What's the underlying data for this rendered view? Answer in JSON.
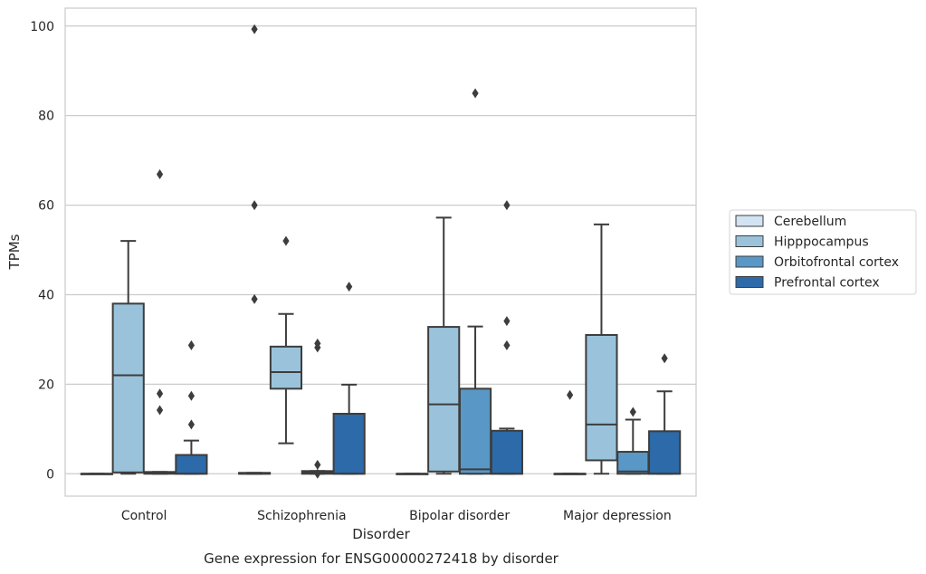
{
  "chart_data": {
    "type": "boxplot",
    "title": "Gene expression for ENSG00000272418 by disorder",
    "xlabel": "Disorder",
    "ylabel": "TPMs",
    "ylim": [
      -5,
      104
    ],
    "yticks": [
      0,
      20,
      40,
      60,
      80,
      100
    ],
    "grid": "horizontal",
    "legend_position": "right",
    "categories": [
      "Control",
      "Schizophrenia",
      "Bipolar disorder",
      "Major depression"
    ],
    "series": [
      {
        "name": "Cerebellum",
        "color": "#d2e3f3",
        "boxes": [
          {
            "q1": 0,
            "median": 0,
            "q3": 0,
            "whislo": 0,
            "whishi": 0,
            "fliers": []
          },
          {
            "q1": 0,
            "median": 0,
            "q3": 0.2,
            "whislo": 0,
            "whishi": 0.2,
            "fliers": [
              39,
              60,
              99.3
            ]
          },
          {
            "q1": 0,
            "median": 0,
            "q3": 0,
            "whislo": 0,
            "whishi": 0,
            "fliers": []
          },
          {
            "q1": 0,
            "median": 0,
            "q3": 0,
            "whislo": 0,
            "whishi": 0,
            "fliers": [
              17.6
            ]
          }
        ]
      },
      {
        "name": "Hipppocampus",
        "color": "#9ac3db",
        "boxes": [
          {
            "q1": 0.3,
            "median": 22,
            "q3": 38,
            "whislo": 0,
            "whishi": 52,
            "fliers": []
          },
          {
            "q1": 19,
            "median": 22.7,
            "q3": 28.4,
            "whislo": 6.8,
            "whishi": 35.7,
            "fliers": [
              52
            ]
          },
          {
            "q1": 0.5,
            "median": 15.5,
            "q3": 32.8,
            "whislo": 0,
            "whishi": 57.2,
            "fliers": []
          },
          {
            "q1": 3,
            "median": 11,
            "q3": 31,
            "whislo": 0,
            "whishi": 55.7,
            "fliers": []
          }
        ]
      },
      {
        "name": "Orbitofrontal cortex",
        "color": "#5998c6",
        "boxes": [
          {
            "q1": 0,
            "median": 0.2,
            "q3": 0.4,
            "whislo": 0,
            "whishi": 0.4,
            "fliers": [
              14.2,
              17.9,
              66.9
            ]
          },
          {
            "q1": 0,
            "median": 0.3,
            "q3": 0.6,
            "whislo": 0,
            "whishi": 0.6,
            "fliers": [
              0,
              2,
              28.2,
              29.1
            ]
          },
          {
            "q1": 0,
            "median": 1,
            "q3": 19,
            "whislo": 0,
            "whishi": 32.9,
            "fliers": [
              85
            ]
          },
          {
            "q1": 0,
            "median": 0.5,
            "q3": 4.9,
            "whislo": 0,
            "whishi": 12.1,
            "fliers": [
              13.8
            ]
          }
        ]
      },
      {
        "name": "Prefrontal cortex",
        "color": "#2c6aa9",
        "boxes": [
          {
            "q1": 0,
            "median": 0,
            "q3": 4.2,
            "whislo": 0,
            "whishi": 7.4,
            "fliers": [
              11,
              17.4,
              28.7
            ]
          },
          {
            "q1": 0,
            "median": 0,
            "q3": 13.4,
            "whislo": 0,
            "whishi": 19.9,
            "fliers": [
              41.8
            ]
          },
          {
            "q1": 0,
            "median": 0,
            "q3": 9.6,
            "whislo": 0,
            "whishi": 10.1,
            "fliers": [
              28.7,
              34.1,
              60
            ]
          },
          {
            "q1": 0,
            "median": 0,
            "q3": 9.5,
            "whislo": 0,
            "whishi": 18.4,
            "fliers": [
              25.8
            ]
          }
        ]
      }
    ]
  }
}
